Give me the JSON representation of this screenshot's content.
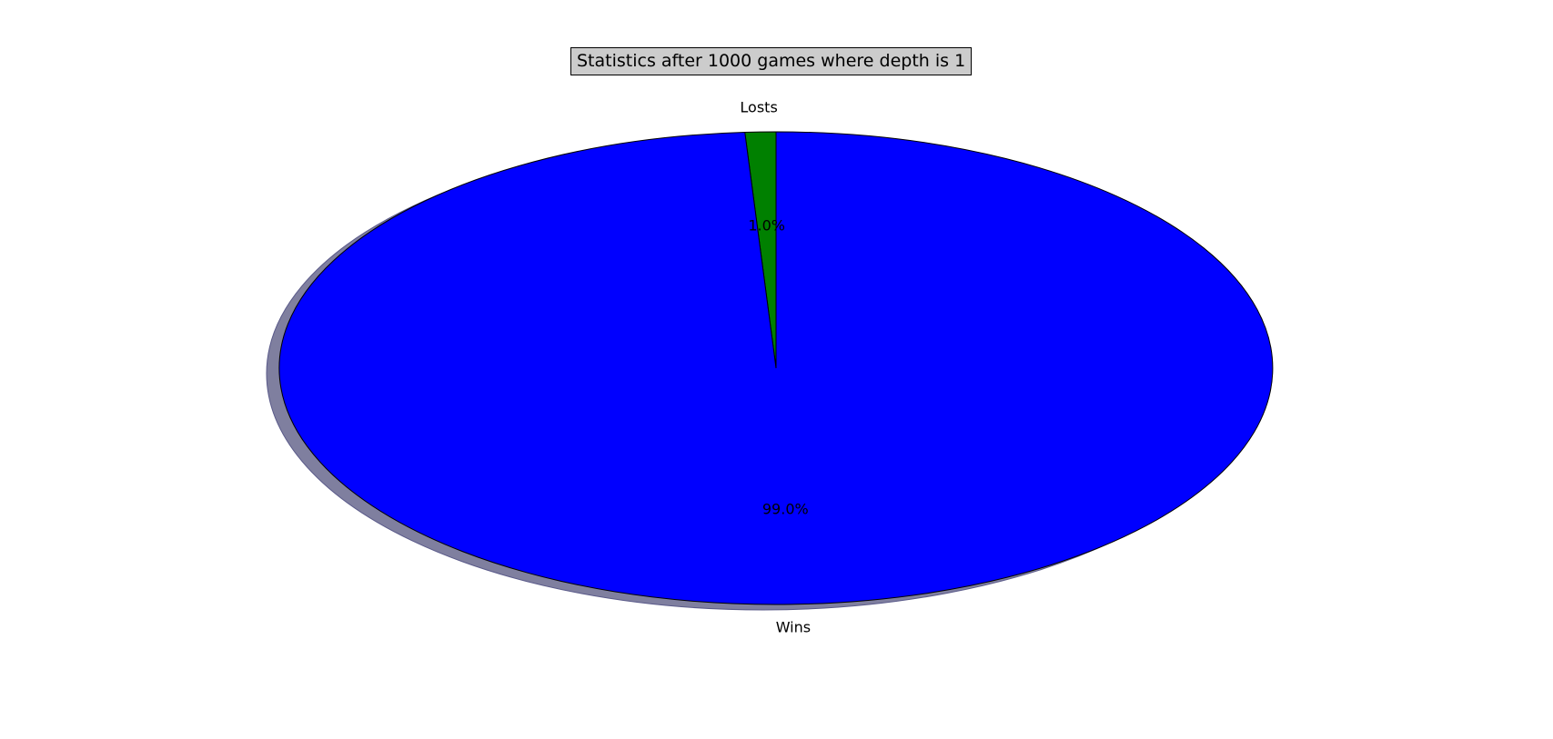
{
  "chart_data": {
    "type": "pie",
    "title": "Statistics after 1000 games where depth is 1",
    "slices": [
      {
        "label": "Losts",
        "value": 1.0,
        "pct_label": "1.0%",
        "color": "#008000"
      },
      {
        "label": "Wins",
        "value": 99.0,
        "pct_label": "99.0%",
        "color": "#0000ff"
      }
    ],
    "start_angle_deg": 90,
    "direction": "counterclockwise",
    "shadow": true,
    "shadow_color": "#7f7f9f",
    "edge_color": "#000000",
    "legend": "none"
  }
}
